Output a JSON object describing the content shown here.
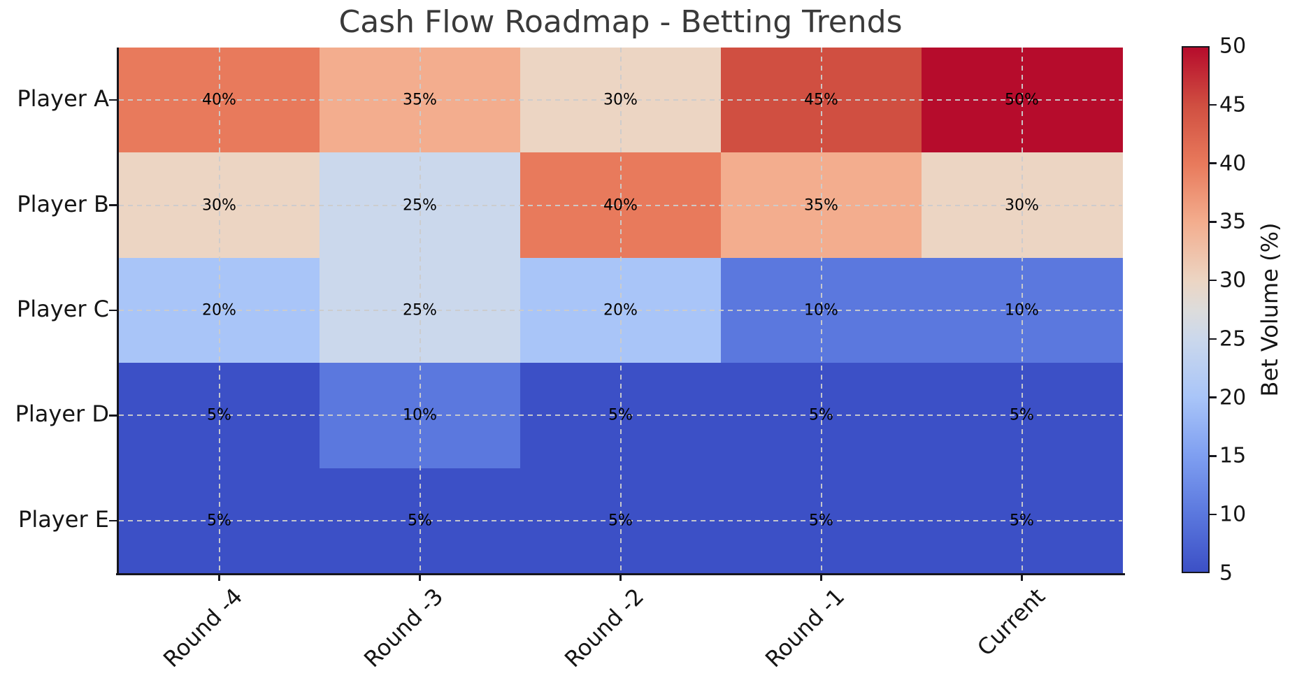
{
  "title": "Cash Flow Roadmap - Betting Trends",
  "chart_data": {
    "type": "heatmap",
    "title": "Cash Flow Roadmap - Betting Trends",
    "rows": [
      "Player A",
      "Player B",
      "Player C",
      "Player D",
      "Player E"
    ],
    "columns": [
      "Round -4",
      "Round -3",
      "Round -2",
      "Round -1",
      "Current"
    ],
    "values": [
      [
        40,
        35,
        30,
        45,
        50
      ],
      [
        30,
        25,
        40,
        35,
        30
      ],
      [
        20,
        25,
        20,
        10,
        10
      ],
      [
        5,
        10,
        5,
        5,
        5
      ],
      [
        5,
        5,
        5,
        5,
        5
      ]
    ],
    "value_suffix": "%",
    "grid": "dashed",
    "colorbar": {
      "label": "Bet Volume (%)",
      "min": 5,
      "max": 50,
      "ticks": [
        5,
        10,
        15,
        20,
        25,
        30,
        35,
        40,
        45,
        50
      ]
    },
    "colormap": {
      "name": "coolwarm",
      "stops": [
        {
          "value": 5,
          "color": "#3C50C6"
        },
        {
          "value": 10,
          "color": "#5B78DE"
        },
        {
          "value": 15,
          "color": "#7F9FF1"
        },
        {
          "value": 20,
          "color": "#A9C5F8"
        },
        {
          "value": 25,
          "color": "#CBD8EC"
        },
        {
          "value": 27.5,
          "color": "#DDDCDB"
        },
        {
          "value": 30,
          "color": "#ECD5C3"
        },
        {
          "value": 35,
          "color": "#F3AD8E"
        },
        {
          "value": 40,
          "color": "#E87A5C"
        },
        {
          "value": 45,
          "color": "#D04F41"
        },
        {
          "value": 50,
          "color": "#B60C2C"
        }
      ]
    },
    "text_colors": {
      "title": "#3a3a3a",
      "ticks": "#151515",
      "cell_labels": "#000000"
    }
  }
}
